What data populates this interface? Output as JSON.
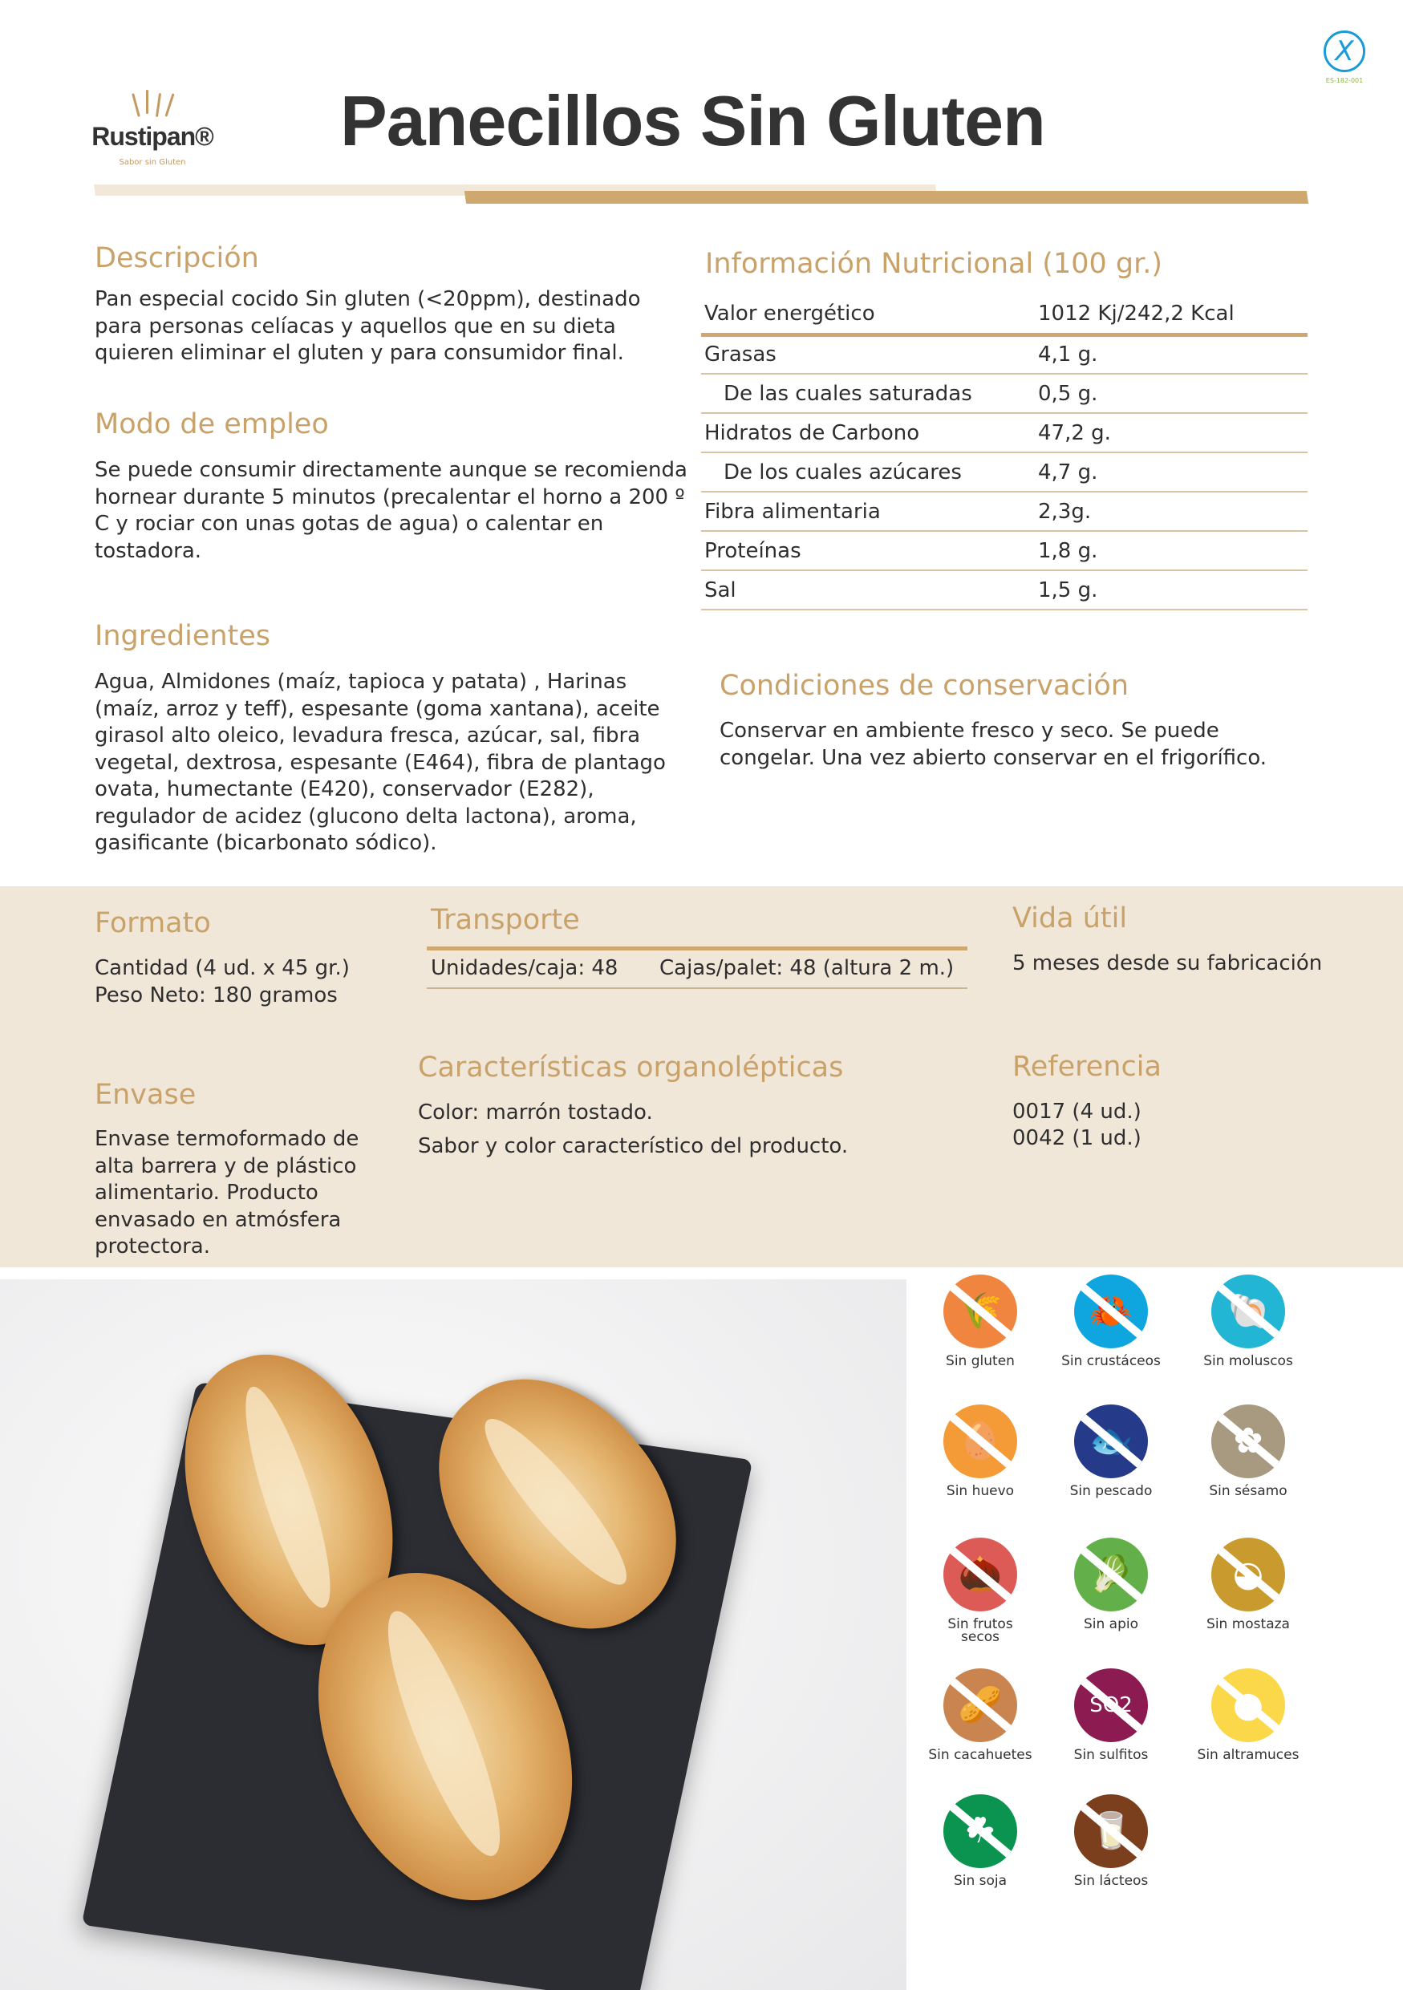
{
  "header": {
    "title": "Panecillos Sin Gluten",
    "logo_name": "Rustipan®",
    "logo_tagline": "Sabor sin Gluten",
    "cert_code": "ES-182-001"
  },
  "descripcion": {
    "heading": "Descripción",
    "text": "Pan especial cocido Sin gluten (<20ppm), destinado para personas celíacas y aquellos que en su dieta quieren eliminar el gluten y para consumidor final."
  },
  "modo": {
    "heading": "Modo de empleo",
    "text": "Se puede consumir directamente aunque se recomienda hornear durante 5 minutos (precalentar el horno a 200 º C y rociar con unas gotas de agua) o calentar en tostadora."
  },
  "ingredientes": {
    "heading": "Ingredientes",
    "text": "Agua, Almidones (maíz, tapioca y patata) , Harinas (maíz, arroz y teff), espesante (goma xantana), aceite girasol alto oleico, levadura fresca, azúcar, sal, fibra vegetal, dextrosa, espesante (E464), fibra de plantago ovata, humectante (E420), conservador (E282), regulador de acidez (glucono delta lactona), aroma, gasificante (bicarbonato sódico)."
  },
  "nutricion": {
    "heading": "Información Nutricional (100 gr.)",
    "rows": [
      {
        "label": "Valor energético",
        "value": "1012 Kj/242,2 Kcal"
      },
      {
        "label": "Grasas",
        "value": "4,1 g."
      },
      {
        "label": "De las cuales saturadas",
        "value": "0,5 g."
      },
      {
        "label": "Hidratos de Carbono",
        "value": "47,2 g."
      },
      {
        "label": "De los cuales azúcares",
        "value": "4,7 g."
      },
      {
        "label": "Fibra alimentaria",
        "value": "2,3g."
      },
      {
        "label": "Proteínas",
        "value": "1,8 g."
      },
      {
        "label": "Sal",
        "value": "1,5 g."
      }
    ]
  },
  "conservacion": {
    "heading": "Condiciones de conservación",
    "text": "Conservar en ambiente fresco y seco. Se puede congelar. Una vez abierto conservar en el frigorífico."
  },
  "formato": {
    "heading": "Formato",
    "line1": "Cantidad (4 ud. x 45 gr.)",
    "line2": "Peso Neto: 180 gramos"
  },
  "transporte": {
    "heading": "Transporte",
    "unidades": "Unidades/caja: 48",
    "cajas": "Cajas/palet: 48 (altura 2 m.)"
  },
  "vida": {
    "heading": "Vida útil",
    "text": "5 meses desde su fabricación"
  },
  "envase": {
    "heading": "Envase",
    "text": "Envase termoformado de alta barrera y de plástico alimentario. Producto envasado en atmósfera protectora."
  },
  "organolepticas": {
    "heading": "Características organolépticas",
    "line1": "Color: marrón tostado.",
    "line2": "Sabor y color característico del producto."
  },
  "referencia": {
    "heading": "Referencia",
    "line1": "0017 (4 ud.)",
    "line2": "0042 (1 ud.)"
  },
  "alergenos": [
    {
      "label": "Sin gluten",
      "color": "#f0853f",
      "icon": "wheat-icon",
      "glyph": "🌾"
    },
    {
      "label": "Sin crustáceos",
      "color": "#0fa6e0",
      "icon": "crab-icon",
      "glyph": "🦀"
    },
    {
      "label": "Sin moluscos",
      "color": "#22b6d4",
      "icon": "shell-icon",
      "glyph": "🐚"
    },
    {
      "label": "Sin huevo",
      "color": "#f49a37",
      "icon": "egg-icon",
      "glyph": "🥚"
    },
    {
      "label": "Sin pescado",
      "color": "#263a8a",
      "icon": "fish-icon",
      "glyph": "🐟"
    },
    {
      "label": "Sin sésamo",
      "color": "#a89a80",
      "icon": "sesame-icon",
      "glyph": "✿"
    },
    {
      "label": "Sin frutos secos",
      "color": "#dd5b57",
      "icon": "nut-icon",
      "glyph": "🌰"
    },
    {
      "label": "Sin apio",
      "color": "#63b04a",
      "icon": "celery-icon",
      "glyph": "🥬"
    },
    {
      "label": "Sin mostaza",
      "color": "#c99a2e",
      "icon": "mustard-icon",
      "glyph": "◒"
    },
    {
      "label": "Sin cacahuetes",
      "color": "#c98450",
      "icon": "peanut-icon",
      "glyph": "🥜"
    },
    {
      "label": "Sin sulfitos",
      "color": "#8c1b52",
      "icon": "sulphite-icon",
      "glyph": "SO2"
    },
    {
      "label": "Sin altramuces",
      "color": "#fbd84a",
      "icon": "lupin-icon",
      "glyph": "●"
    },
    {
      "label": "Sin soja",
      "color": "#0b9450",
      "icon": "soy-icon",
      "glyph": "☘"
    },
    {
      "label": "Sin lácteos",
      "color": "#7b3f1d",
      "icon": "milk-jug-icon",
      "glyph": "🥛"
    }
  ]
}
